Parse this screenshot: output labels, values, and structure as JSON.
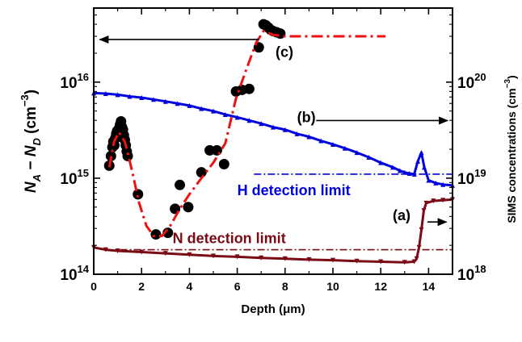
{
  "chart_data": {
    "type": "scatter",
    "title": "",
    "xlabel": "Depth (μm)",
    "ylabel_left_parts": [
      "N",
      "A",
      " − ",
      "N",
      "D",
      "  (cm",
      "−3",
      ")"
    ],
    "ylabel_right_parts": [
      "SIMS concentrations (cm",
      "−3",
      ")"
    ],
    "x_range": [
      0,
      15
    ],
    "x_ticks": [
      0,
      2,
      4,
      6,
      8,
      10,
      12,
      14
    ],
    "x_tick_labels": [
      "0",
      "2",
      "4",
      "6",
      "8",
      "10",
      "12",
      "14"
    ],
    "y_left_log_range": [
      100000000000000.0,
      5.9e+16
    ],
    "y_left_ticks": [
      {
        "value": 100000000000000.0,
        "base": "10",
        "exp": "14"
      },
      {
        "value": 1000000000000000.0,
        "base": "10",
        "exp": "15"
      },
      {
        "value": 1e+16,
        "base": "10",
        "exp": "16"
      }
    ],
    "y_right_log_range": [
      1e+18,
      5.9e+20
    ],
    "y_right_ticks": [
      {
        "value": 1e+18,
        "base": "10",
        "exp": "18"
      },
      {
        "value": 1e+19,
        "base": "10",
        "exp": "19"
      },
      {
        "value": 1e+20,
        "base": "10",
        "exp": "20"
      }
    ],
    "colors": {
      "apparent_doping_points": "#000000",
      "fit_line": "#ee1111",
      "hydrogen": "#0000dd",
      "nitrogen": "#7a0a14",
      "arrows": "#000000"
    },
    "series": [
      {
        "key": "c",
        "axis": "left",
        "marker": "filled-circle",
        "points": [
          [
            0.65,
            1350000000000000.0
          ],
          [
            0.72,
            1700000000000000.0
          ],
          [
            0.78,
            2100000000000000.0
          ],
          [
            0.82,
            2400000000000000.0
          ],
          [
            0.86,
            2200000000000000.0
          ],
          [
            0.9,
            2600000000000000.0
          ],
          [
            0.94,
            2900000000000000.0
          ],
          [
            0.98,
            3100000000000000.0
          ],
          [
            1.02,
            2700000000000000.0
          ],
          [
            1.06,
            3300000000000000.0
          ],
          [
            1.1,
            3600000000000000.0
          ],
          [
            1.14,
            3900000000000000.0
          ],
          [
            1.18,
            3400000000000000.0
          ],
          [
            1.22,
            3200000000000000.0
          ],
          [
            1.26,
            2800000000000000.0
          ],
          [
            1.3,
            2500000000000000.0
          ],
          [
            1.34,
            2200000000000000.0
          ],
          [
            1.38,
            1900000000000000.0
          ],
          [
            1.42,
            1700000000000000.0
          ],
          [
            1.85,
            680000000000000.0
          ],
          [
            2.6,
            260000000000000.0
          ],
          [
            3.1,
            270000000000000.0
          ],
          [
            3.4,
            480000000000000.0
          ],
          [
            3.6,
            850000000000000.0
          ],
          [
            3.95,
            500000000000000.0
          ],
          [
            4.5,
            1150000000000000.0
          ],
          [
            4.85,
            1950000000000000.0
          ],
          [
            5.15,
            1950000000000000.0
          ],
          [
            5.45,
            1400000000000000.0
          ],
          [
            5.95,
            8000000000000000.0
          ],
          [
            6.2,
            8300000000000000.0
          ],
          [
            6.5,
            8500000000000000.0
          ],
          [
            6.9,
            2.3e+16
          ],
          [
            7.1,
            4e+16
          ],
          [
            7.2,
            3.9e+16
          ],
          [
            7.3,
            3.7e+16
          ],
          [
            7.4,
            3.5e+16
          ],
          [
            7.5,
            3.4e+16
          ],
          [
            7.65,
            3.3e+16
          ],
          [
            7.8,
            3.2e+16
          ]
        ]
      },
      {
        "key": "c-fit",
        "axis": "left",
        "marker": "dash-dot-line",
        "points": [
          [
            0.65,
            1300000000000000.0
          ],
          [
            0.85,
            2400000000000000.0
          ],
          [
            1.05,
            3000000000000000.0
          ],
          [
            1.3,
            2400000000000000.0
          ],
          [
            1.6,
            1200000000000000.0
          ],
          [
            1.9,
            550000000000000.0
          ],
          [
            2.2,
            320000000000000.0
          ],
          [
            2.5,
            250000000000000.0
          ],
          [
            2.85,
            250000000000000.0
          ],
          [
            3.2,
            320000000000000.0
          ],
          [
            3.6,
            480000000000000.0
          ],
          [
            4.0,
            680000000000000.0
          ],
          [
            4.5,
            1000000000000000.0
          ],
          [
            5.0,
            1450000000000000.0
          ],
          [
            5.5,
            2300000000000000.0
          ],
          [
            5.95,
            6800000000000000.0
          ],
          [
            6.4,
            1.4e+16
          ],
          [
            6.8,
            2.6e+16
          ],
          [
            7.1,
            3.4e+16
          ],
          [
            7.5,
            3.1e+16
          ],
          [
            8.0,
            3e+16
          ],
          [
            12.2,
            3e+16
          ]
        ]
      },
      {
        "key": "b",
        "name": "H",
        "axis": "right",
        "marker": "triangle-line",
        "points": [
          [
            0.0,
            7.7e+19
          ],
          [
            0.5,
            7.6e+19
          ],
          [
            1.0,
            7.4e+19
          ],
          [
            1.5,
            7.1e+19
          ],
          [
            2.0,
            6.9e+19
          ],
          [
            2.5,
            6.6e+19
          ],
          [
            3.0,
            6.3e+19
          ],
          [
            3.5,
            6e+19
          ],
          [
            4.0,
            5.7e+19
          ],
          [
            4.5,
            5.3e+19
          ],
          [
            5.0,
            5e+19
          ],
          [
            5.5,
            4.6e+19
          ],
          [
            6.0,
            4.3e+19
          ],
          [
            6.5,
            4e+19
          ],
          [
            7.0,
            3.7e+19
          ],
          [
            7.5,
            3.4e+19
          ],
          [
            8.0,
            3.2e+19
          ],
          [
            8.5,
            2.9e+19
          ],
          [
            9.0,
            2.7e+19
          ],
          [
            9.5,
            2.45e+19
          ],
          [
            10.0,
            2.25e+19
          ],
          [
            10.5,
            2.05e+19
          ],
          [
            11.0,
            1.85e+19
          ],
          [
            11.5,
            1.65e+19
          ],
          [
            12.0,
            1.45e+19
          ],
          [
            12.5,
            1.3e+19
          ],
          [
            12.8,
            1.2e+19
          ],
          [
            13.0,
            1.15e+19
          ],
          [
            13.2,
            1.12e+19
          ],
          [
            13.4,
            1.1e+19
          ],
          [
            13.55,
            1.5e+19
          ],
          [
            13.7,
            1.85e+19
          ],
          [
            13.82,
            1.3e+19
          ],
          [
            14.0,
            9.5e+18
          ],
          [
            14.3,
            8.9e+18
          ],
          [
            14.6,
            8.6e+18
          ],
          [
            15.0,
            8.4e+18
          ]
        ]
      },
      {
        "key": "a",
        "name": "N",
        "axis": "right",
        "marker": "triangle-down-line",
        "points": [
          [
            0.0,
            1.9e+18
          ],
          [
            0.5,
            1.8e+18
          ],
          [
            1.0,
            1.75e+18
          ],
          [
            2.0,
            1.7e+18
          ],
          [
            3.0,
            1.65e+18
          ],
          [
            4.0,
            1.6e+18
          ],
          [
            5.0,
            1.55e+18
          ],
          [
            6.0,
            1.52e+18
          ],
          [
            7.0,
            1.48e+18
          ],
          [
            8.0,
            1.45e+18
          ],
          [
            9.0,
            1.42e+18
          ],
          [
            10.0,
            1.4e+18
          ],
          [
            11.0,
            1.37e+18
          ],
          [
            12.0,
            1.35e+18
          ],
          [
            13.0,
            1.33e+18
          ],
          [
            13.4,
            1.35e+18
          ],
          [
            13.5,
            1.45e+18
          ],
          [
            13.6,
            1.9e+18
          ],
          [
            13.7,
            2.9e+18
          ],
          [
            13.8,
            4.6e+18
          ],
          [
            13.9,
            5.5e+18
          ],
          [
            14.2,
            5.8e+18
          ],
          [
            14.6,
            5.9e+18
          ],
          [
            15.0,
            6e+18
          ]
        ]
      }
    ],
    "reference_lines": [
      {
        "key": "h-limit",
        "axis": "right",
        "value": 1.1e+19,
        "x_from": 6.7,
        "x_to": 15.0,
        "color_key": "hydrogen",
        "label": "H detection limit"
      },
      {
        "key": "n-limit",
        "axis": "right",
        "value": 1.8e+18,
        "x_from": 1.1,
        "x_to": 15.0,
        "color_key": "nitrogen",
        "label": "N detection limit"
      }
    ],
    "annotations": [
      {
        "key": "c",
        "text": "(c)",
        "x": 7.6,
        "y_axis": "left",
        "y": 2.05e+16,
        "arrow_to": "left"
      },
      {
        "key": "b",
        "text": "(b)",
        "x": 8.5,
        "y_axis": "right",
        "y": 4.3e+19,
        "arrow_to": "right"
      },
      {
        "key": "a",
        "text": "(a)",
        "x": 12.5,
        "y_axis": "right",
        "y": 4.1e+18,
        "arrow_to": "right"
      }
    ],
    "grid": false,
    "legend": "none"
  }
}
